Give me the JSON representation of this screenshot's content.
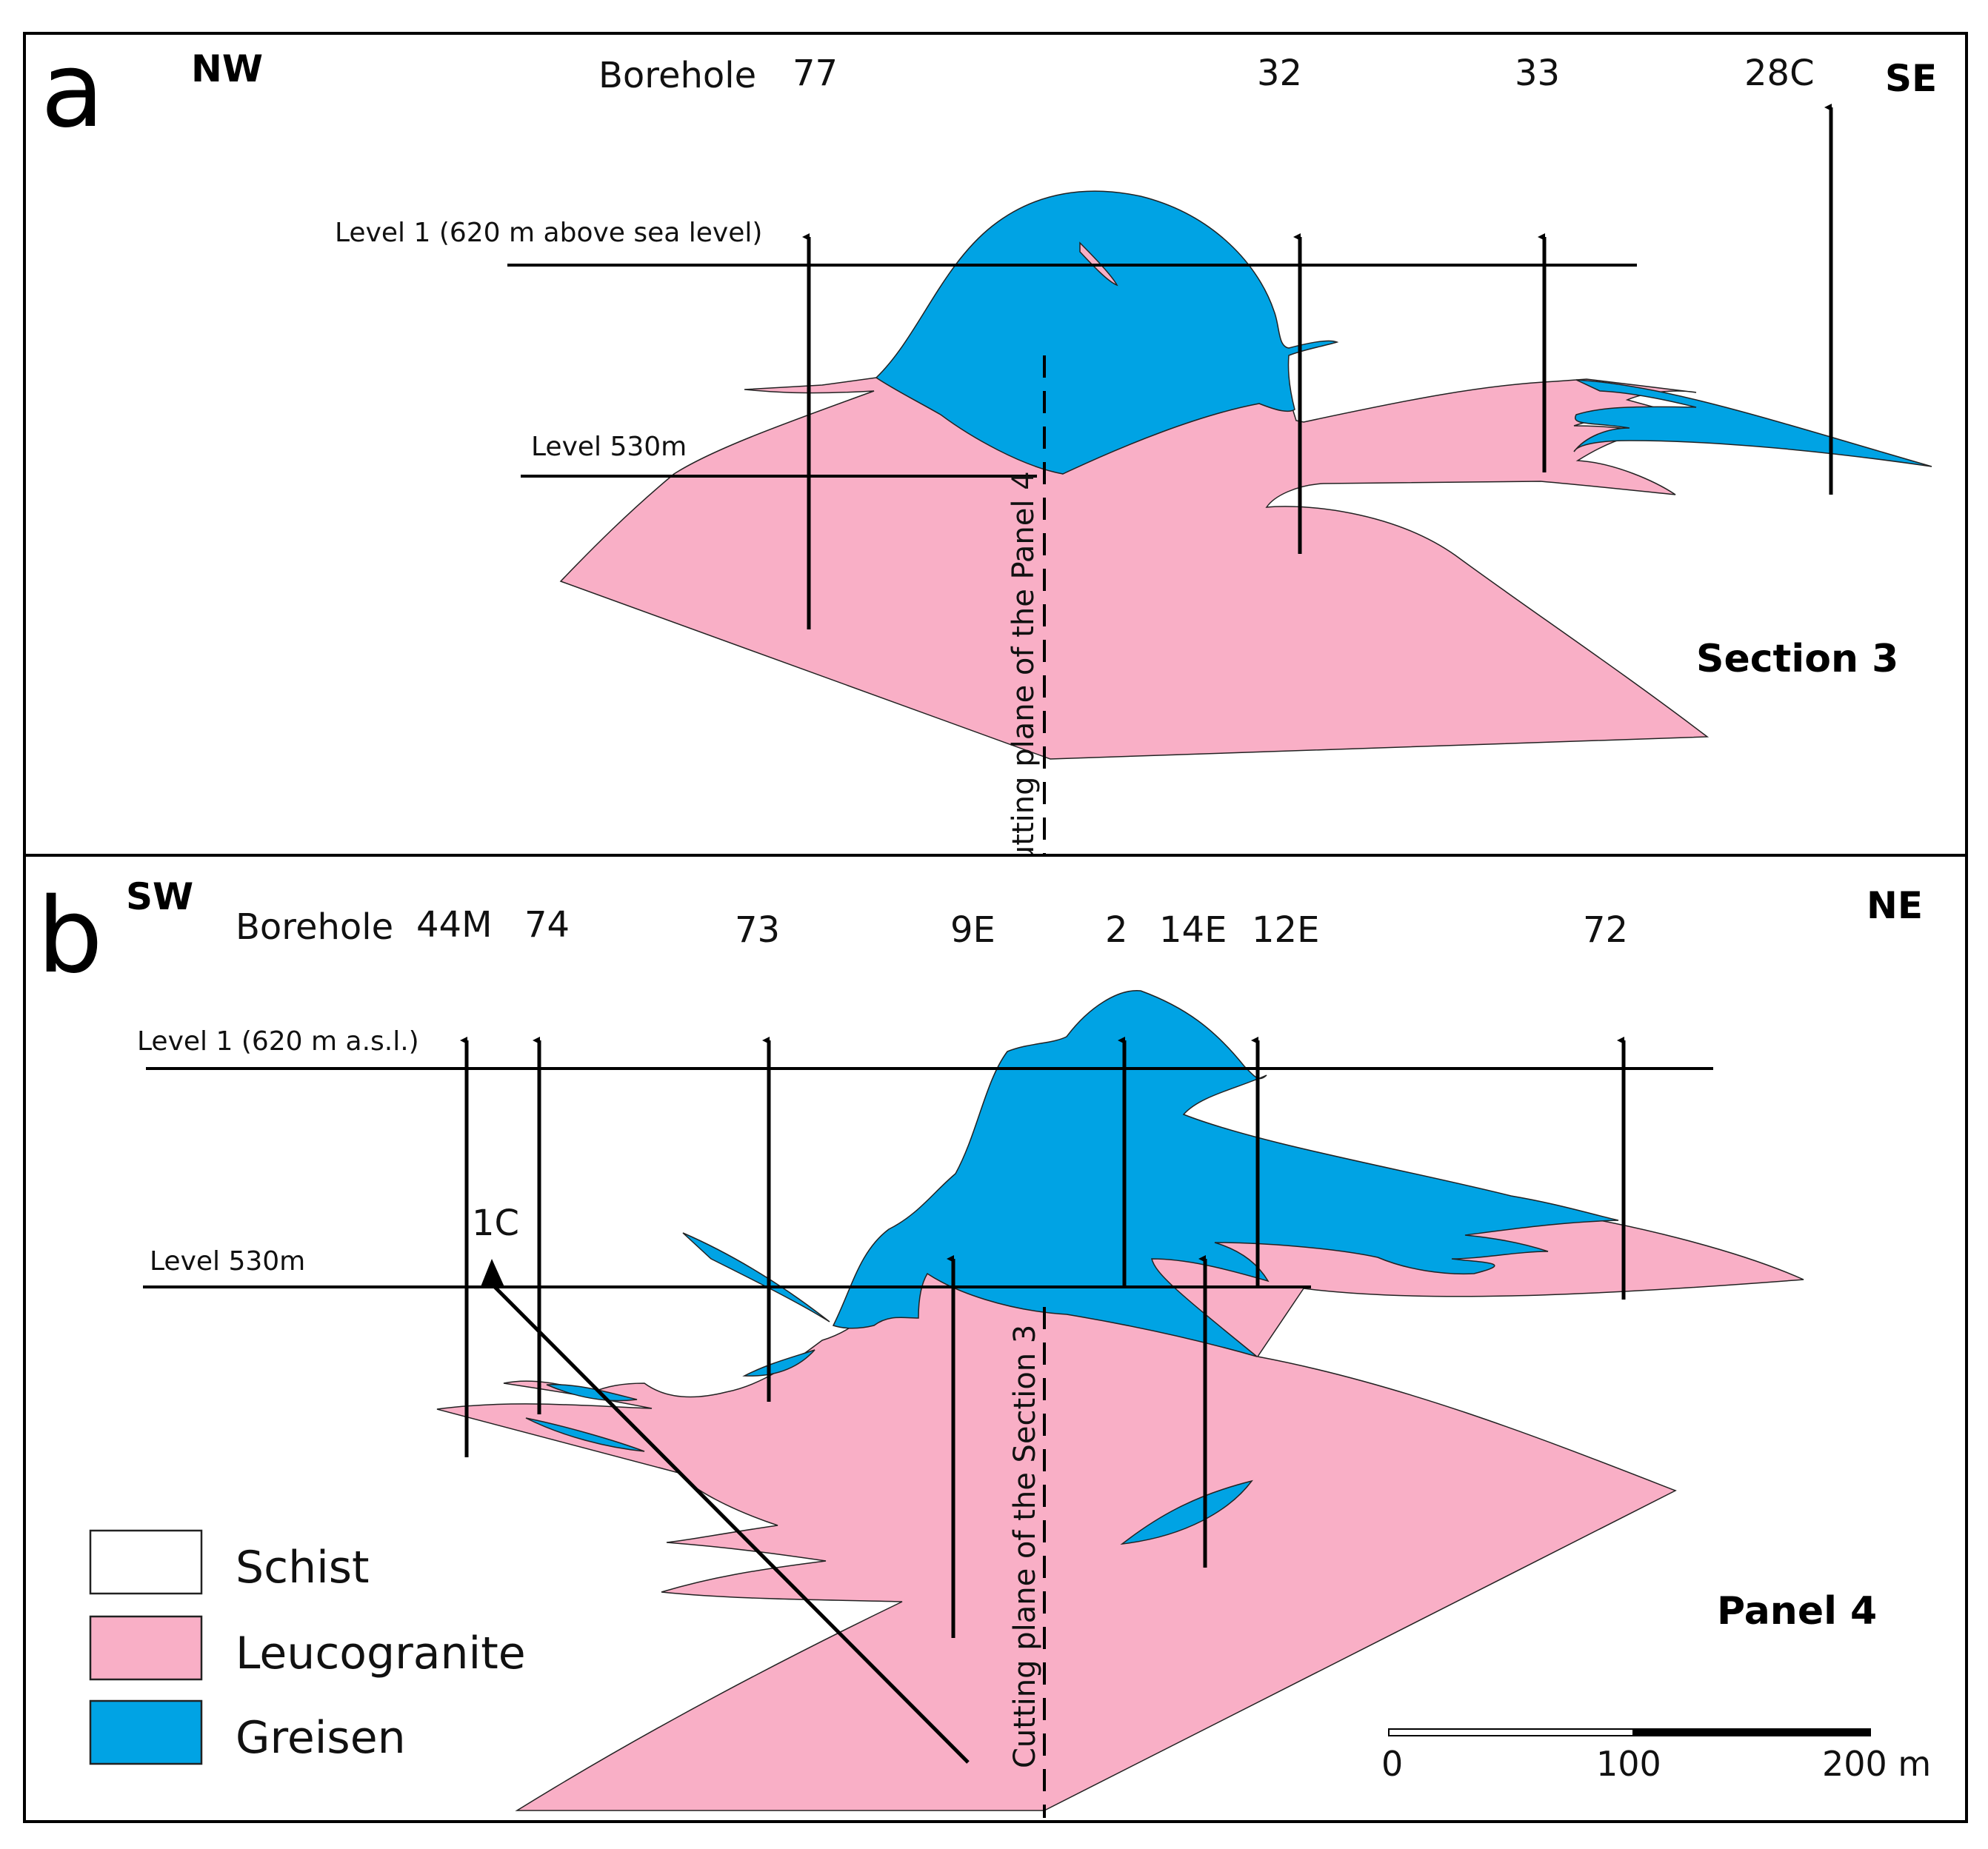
{
  "colors": {
    "leucogranite": "#F9AFC6",
    "greisen": "#00A3E4",
    "schist": "#FFFFFF",
    "line": "#000000"
  },
  "panel_a": {
    "letter": "a",
    "dir_left": "NW",
    "dir_right": "SE",
    "borehole_label": "Borehole",
    "boreholes": [
      "77",
      "32",
      "33",
      "28C"
    ],
    "level1_label": "Level 1 (620 m above sea level)",
    "level530_label": "Level  530m",
    "cutting_label": "Cutting plane of the Panel 4",
    "title": "Section 3"
  },
  "panel_b": {
    "letter": "b",
    "dir_left": "SW",
    "dir_right": "NE",
    "borehole_label": "Borehole",
    "boreholes": [
      "44M",
      "74",
      "73",
      "9E",
      "2",
      "14E",
      "12E",
      "72"
    ],
    "borehole_1c": "1C",
    "level1_label": "Level 1 (620 m a.s.l.)",
    "level530_label": "Level  530m",
    "cutting_label": "Cutting plane of the Section 3",
    "title": "Panel 4"
  },
  "legend": {
    "items": [
      {
        "label": "Schist",
        "color": "#FFFFFF"
      },
      {
        "label": "Leucogranite",
        "color": "#F9AFC6"
      },
      {
        "label": "Greisen",
        "color": "#00A3E4"
      }
    ]
  },
  "scale_bar": {
    "labels": [
      "0",
      "100",
      "200 m"
    ]
  }
}
